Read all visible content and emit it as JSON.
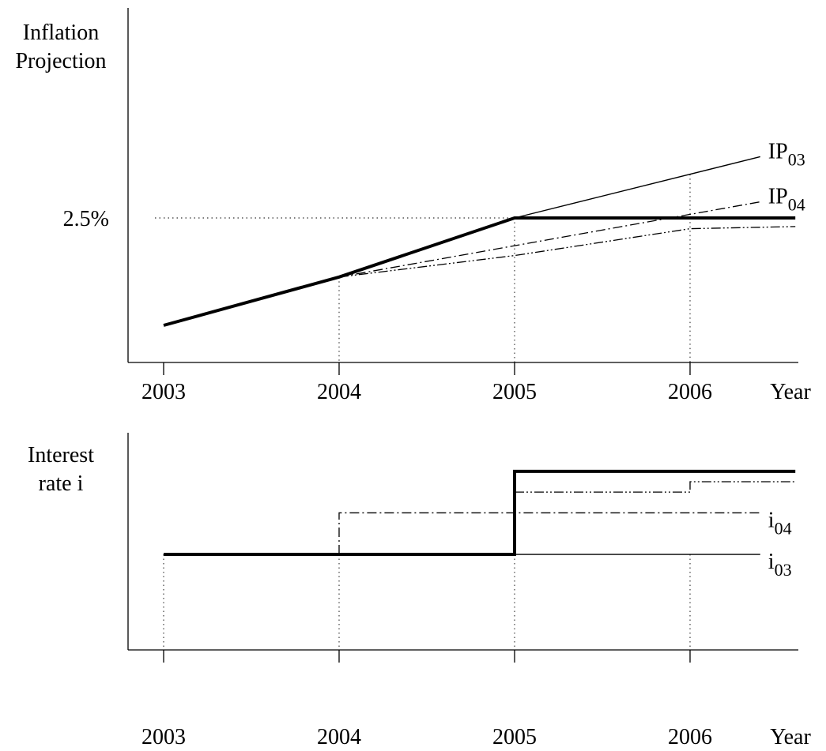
{
  "chart_data": [
    {
      "type": "line",
      "ylabel_lines": [
        "Inflation",
        "Projection"
      ],
      "xlabel": "Year",
      "x_ticks": [
        2003,
        2004,
        2005,
        2006
      ],
      "xlim": [
        2002.8,
        2006.6
      ],
      "ylim": [
        0,
        10
      ],
      "y_ticks": [
        {
          "value": 5,
          "label": "2.5%"
        }
      ],
      "x_reference_lines": [
        2004,
        2005,
        2006
      ],
      "series": [
        {
          "label_main": "",
          "label_sub": "",
          "style": "thick",
          "points": [
            [
              2003,
              0
            ],
            [
              2004,
              2.25
            ],
            [
              2005,
              5.0
            ],
            [
              2006.6,
              5.0
            ]
          ]
        },
        {
          "label_main": "IP",
          "label_sub": "03",
          "style": "thin",
          "points": [
            [
              2005,
              5.0
            ],
            [
              2006.4,
              7.85
            ]
          ]
        },
        {
          "label_main": "IP",
          "label_sub": "04",
          "style": "dashdot",
          "points": [
            [
              2004,
              2.25
            ],
            [
              2006.4,
              5.75
            ]
          ]
        },
        {
          "label_main": "",
          "label_sub": "",
          "style": "dashdotdot",
          "points": [
            [
              2004,
              2.25
            ],
            [
              2005,
              3.25
            ],
            [
              2006,
              4.5
            ],
            [
              2006.6,
              4.6
            ]
          ]
        }
      ]
    },
    {
      "type": "line",
      "ylabel_lines": [
        "Interest",
        "rate  i"
      ],
      "xlabel": "Year",
      "x_ticks": [
        2003,
        2004,
        2005,
        2006
      ],
      "xlim": [
        2002.8,
        2006.6
      ],
      "ylim": [
        0,
        10
      ],
      "x_reference_lines": [
        2003,
        2004,
        2005,
        2006
      ],
      "series": [
        {
          "label_main": "",
          "label_sub": "",
          "style": "thick",
          "points": [
            [
              2003,
              4.6
            ],
            [
              2005,
              4.6
            ],
            [
              2005,
              8.6
            ],
            [
              2006.6,
              8.6
            ]
          ]
        },
        {
          "label_main": "i",
          "label_sub": "03",
          "style": "thin",
          "points": [
            [
              2005,
              4.6
            ],
            [
              2006.4,
              4.6
            ]
          ]
        },
        {
          "label_main": "i",
          "label_sub": "04",
          "style": "dashdot",
          "points": [
            [
              2004,
              4.6
            ],
            [
              2004,
              6.6
            ],
            [
              2006.4,
              6.6
            ]
          ]
        },
        {
          "label_main": "",
          "label_sub": "",
          "style": "dashdotdot",
          "points": [
            [
              2005,
              7.6
            ],
            [
              2006,
              7.6
            ],
            [
              2006,
              8.1
            ],
            [
              2006.6,
              8.1
            ]
          ]
        }
      ]
    }
  ]
}
